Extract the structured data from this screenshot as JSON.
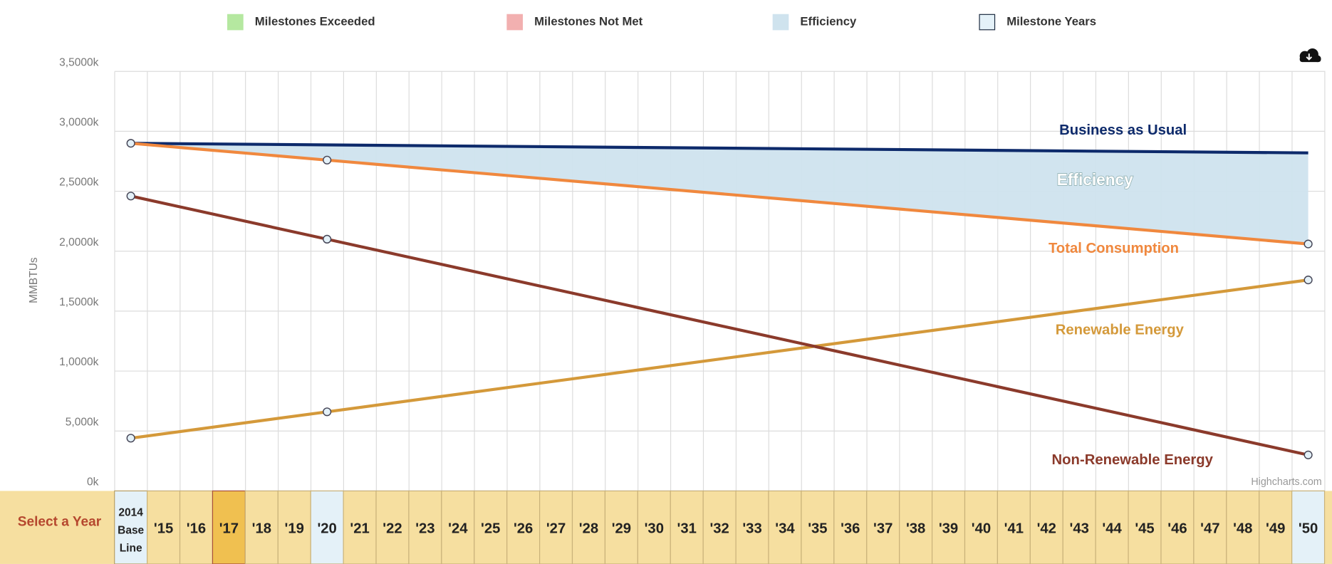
{
  "chart_data": {
    "type": "line",
    "legend": [
      {
        "name": "Milestones Exceeded",
        "color": "#b5e8a0",
        "border": "#b5e8a0"
      },
      {
        "name": "Milestones Not Met",
        "color": "#f2b0b0",
        "border": "#f2b0b0"
      },
      {
        "name": "Efficiency",
        "color": "#cfe3ee",
        "border": "#cfe3ee"
      },
      {
        "name": "Milestone Years",
        "color": "#e4f1f8",
        "border": "#1c2b40"
      }
    ],
    "ylabel": "MMBTUs",
    "ylim": [
      0,
      35000
    ],
    "yticks": [
      {
        "value": 0,
        "label": "0k"
      },
      {
        "value": 5000,
        "label": "5,000k"
      },
      {
        "value": 10000,
        "label": "1,0000k"
      },
      {
        "value": 15000,
        "label": "1,5000k"
      },
      {
        "value": 20000,
        "label": "2,0000k"
      },
      {
        "value": 25000,
        "label": "2,5000k"
      },
      {
        "value": 30000,
        "label": "3,0000k"
      },
      {
        "value": 35000,
        "label": "3,5000k"
      }
    ],
    "xlim": [
      2014,
      2050
    ],
    "grid": true,
    "series": [
      {
        "name": "Business as Usual",
        "color": "#0d2a6b",
        "marker": false,
        "x": [
          2014,
          2050
        ],
        "values": [
          29000,
          28200
        ]
      },
      {
        "name": "Total Consumption",
        "color": "#f0883e",
        "marker": true,
        "x": [
          2014,
          2020,
          2050
        ],
        "values": [
          29000,
          27600,
          20600
        ]
      },
      {
        "name": "Renewable Energy",
        "color": "#d4993a",
        "marker": true,
        "x": [
          2014,
          2020,
          2050
        ],
        "values": [
          4400,
          6600,
          17600
        ]
      },
      {
        "name": "Non-Renewable Energy",
        "color": "#8b3a2b",
        "marker": true,
        "x": [
          2014,
          2020,
          2050
        ],
        "values": [
          24600,
          21000,
          3000
        ]
      }
    ],
    "area": {
      "name": "Efficiency",
      "color": "#cfe3ee",
      "between": [
        0,
        1
      ]
    },
    "credits": "Highcharts.com",
    "year_bar": {
      "label": "Select a Year",
      "baseline": [
        "2014",
        "Base",
        "Line"
      ],
      "years": [
        "'15",
        "'16",
        "'17",
        "'18",
        "'19",
        "'20",
        "'21",
        "'22",
        "'23",
        "'24",
        "'25",
        "'26",
        "'27",
        "'28",
        "'29",
        "'30",
        "'31",
        "'32",
        "'33",
        "'34",
        "'35",
        "'36",
        "'37",
        "'38",
        "'39",
        "'40",
        "'41",
        "'42",
        "'43",
        "'44",
        "'45",
        "'46",
        "'47",
        "'48",
        "'49",
        "'50"
      ],
      "selected": 2,
      "milestones": [
        5,
        35
      ]
    }
  }
}
